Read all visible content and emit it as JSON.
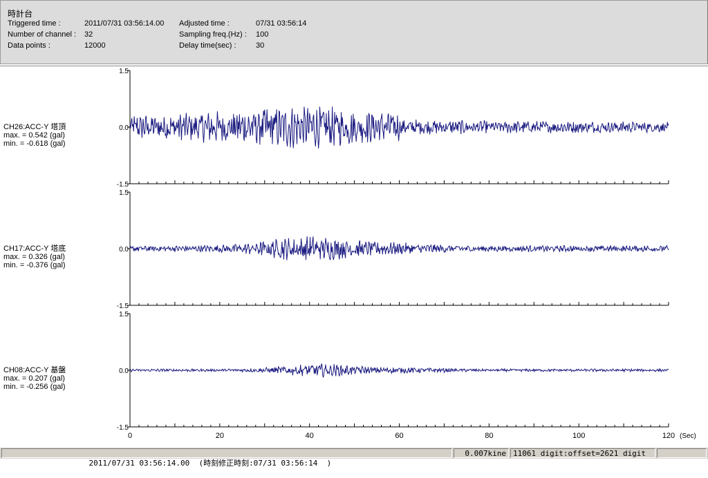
{
  "header": {
    "title": "時計台",
    "triggered_label": "Triggered time :",
    "triggered_value": "2011/07/31 03:56:14.00",
    "channels_label": "Number of channel :",
    "channels_value": "32",
    "points_label": "Data points :",
    "points_value": "12000",
    "adjusted_label": "Adjusted time :",
    "adjusted_value": "07/31 03:56:14",
    "sampling_label": "Sampling freq.(Hz) :",
    "sampling_value": "100",
    "delay_label": "Delay time(sec) :",
    "delay_value": "30"
  },
  "chart_data": {
    "type": "line",
    "x_ticks": [
      "0",
      "20",
      "40",
      "60",
      "80",
      "100",
      "120"
    ],
    "x_unit": "(Sec)",
    "xlim": [
      0,
      120
    ],
    "y_tick_labels": [
      "1.5",
      "0.0",
      "-1.5"
    ],
    "ylim": [
      -1.5,
      1.5
    ],
    "line_color": "#1a1a80",
    "channels": [
      {
        "name": "CH26:ACC-Y 塔頂",
        "max_text": "max. = 0.542 (gal)",
        "min_text": "min. = -0.618 (gal)",
        "max": 0.542,
        "min": -0.618
      },
      {
        "name": "CH17:ACC-Y 塔底",
        "max_text": "max. = 0.326 (gal)",
        "min_text": "min. = -0.376 (gal)",
        "max": 0.326,
        "min": -0.376
      },
      {
        "name": "CH08:ACC-Y 基盤",
        "max_text": "max. = 0.207 (gal)",
        "min_text": "min. = -0.256 (gal)",
        "max": 0.207,
        "min": -0.256
      }
    ]
  },
  "status": {
    "time": "2011/07/31 03:56:14.00  (時刻修正時刻:07/31 03:56:14  )",
    "velocity": "0.007kine",
    "digit": "11061 digit:offset=2621 digit"
  }
}
